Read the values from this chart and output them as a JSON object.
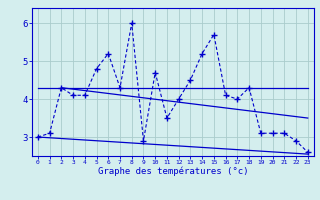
{
  "x": [
    0,
    1,
    2,
    3,
    4,
    5,
    6,
    7,
    8,
    9,
    10,
    11,
    12,
    13,
    14,
    15,
    16,
    17,
    18,
    19,
    20,
    21,
    22,
    23
  ],
  "y_main": [
    3.0,
    3.1,
    4.3,
    4.1,
    4.1,
    4.8,
    5.2,
    4.3,
    6.0,
    2.9,
    4.7,
    3.5,
    4.0,
    4.5,
    5.2,
    5.7,
    4.1,
    4.0,
    4.3,
    3.1,
    3.1,
    3.1,
    2.9,
    2.6
  ],
  "trend1_x": [
    0,
    23
  ],
  "trend1_y": [
    4.3,
    4.3
  ],
  "trend2_x": [
    0,
    23
  ],
  "trend2_y": [
    3.0,
    2.55
  ],
  "trend3_x": [
    2,
    23
  ],
  "trend3_y": [
    4.3,
    3.5
  ],
  "line_color": "#0000cc",
  "bg_color": "#d4eeee",
  "grid_color": "#aacccc",
  "xlabel": "Graphe des températures (°c)",
  "ylim": [
    2.5,
    6.4
  ],
  "xlim": [
    -0.5,
    23.5
  ],
  "yticks": [
    3,
    4,
    5,
    6
  ],
  "xtick_labels": [
    "0",
    "1",
    "2",
    "3",
    "4",
    "5",
    "6",
    "7",
    "8",
    "9",
    "10",
    "11",
    "12",
    "13",
    "14",
    "15",
    "16",
    "17",
    "18",
    "19",
    "20",
    "21",
    "22",
    "23"
  ]
}
